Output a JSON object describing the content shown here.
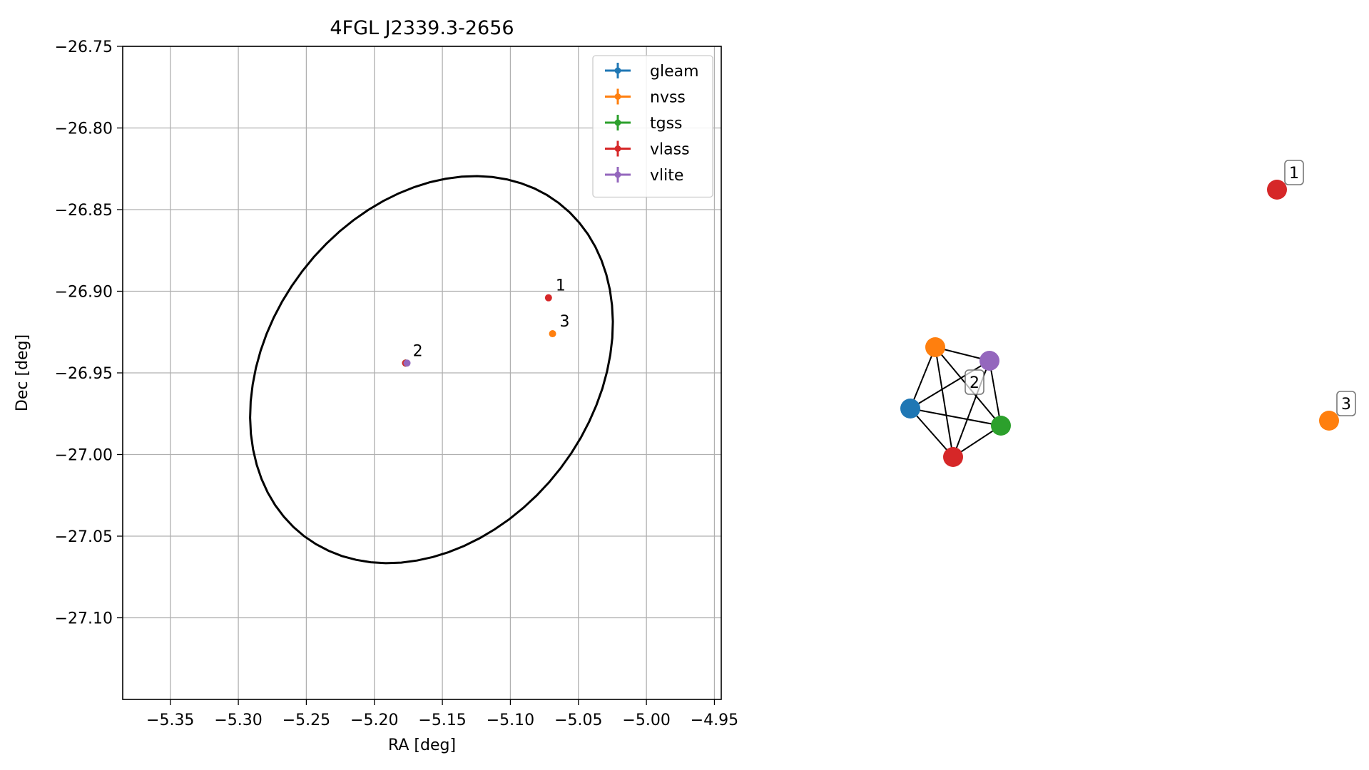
{
  "chart_data": [
    {
      "type": "scatter",
      "title": "4FGL J2339.3-2656",
      "xlabel": "RA [deg]",
      "ylabel": "Dec [deg]",
      "xlim": [
        -5.385,
        -4.945
      ],
      "ylim": [
        -27.15,
        -26.75
      ],
      "grid": true,
      "legend_position": "upper right",
      "x_ticks": [
        -5.35,
        -5.3,
        -5.25,
        -5.2,
        -5.15,
        -5.1,
        -5.05,
        -5.0,
        -4.95
      ],
      "x_tick_labels": [
        "−5.35",
        "−5.30",
        "−5.25",
        "−5.20",
        "−5.15",
        "−5.10",
        "−5.05",
        "−5.00",
        "−4.95"
      ],
      "y_ticks": [
        -26.75,
        -26.8,
        -26.85,
        -26.9,
        -26.95,
        -27.0,
        -27.05,
        -27.1
      ],
      "y_tick_labels": [
        "−26.75",
        "−26.80",
        "−26.85",
        "−26.90",
        "−26.95",
        "−27.00",
        "−27.05",
        "−27.10"
      ],
      "ellipse": {
        "center": [
          -5.158,
          -26.948
        ],
        "semi_axes": [
          0.142,
          0.108
        ],
        "rotation_deg": 32,
        "color": "#000000"
      },
      "series": [
        {
          "name": "gleam",
          "color": "#1f77b4",
          "points": [
            {
              "ra": -5.177,
              "dec": -26.944
            }
          ]
        },
        {
          "name": "nvss",
          "color": "#ff7f0e",
          "points": [
            {
              "ra": -5.177,
              "dec": -26.944
            },
            {
              "ra": -5.069,
              "dec": -26.926
            }
          ]
        },
        {
          "name": "tgss",
          "color": "#2ca02c",
          "points": [
            {
              "ra": -5.177,
              "dec": -26.944
            }
          ]
        },
        {
          "name": "vlass",
          "color": "#d62728",
          "points": [
            {
              "ra": -5.177,
              "dec": -26.944
            },
            {
              "ra": -5.072,
              "dec": -26.904
            }
          ]
        },
        {
          "name": "vlite",
          "color": "#9467bd",
          "points": [
            {
              "ra": -5.176,
              "dec": -26.944
            }
          ]
        }
      ],
      "annotations": [
        {
          "text": "1",
          "ra": -5.072,
          "dec": -26.904
        },
        {
          "text": "3",
          "ra": -5.069,
          "dec": -26.926
        },
        {
          "text": "2",
          "ra": -5.177,
          "dec": -26.944
        }
      ]
    },
    {
      "type": "network",
      "groups": [
        {
          "label": "1",
          "nodes": [
            "vlass"
          ],
          "edges": []
        },
        {
          "label": "2",
          "nodes": [
            "nvss",
            "vlite",
            "gleam",
            "tgss",
            "vlass"
          ],
          "edges": [
            [
              "nvss",
              "vlite"
            ],
            [
              "nvss",
              "gleam"
            ],
            [
              "nvss",
              "tgss"
            ],
            [
              "nvss",
              "vlass"
            ],
            [
              "vlite",
              "gleam"
            ],
            [
              "vlite",
              "tgss"
            ],
            [
              "vlite",
              "vlass"
            ],
            [
              "gleam",
              "tgss"
            ],
            [
              "gleam",
              "vlass"
            ],
            [
              "tgss",
              "vlass"
            ]
          ]
        },
        {
          "label": "3",
          "nodes": [
            "nvss"
          ],
          "edges": []
        }
      ]
    }
  ]
}
